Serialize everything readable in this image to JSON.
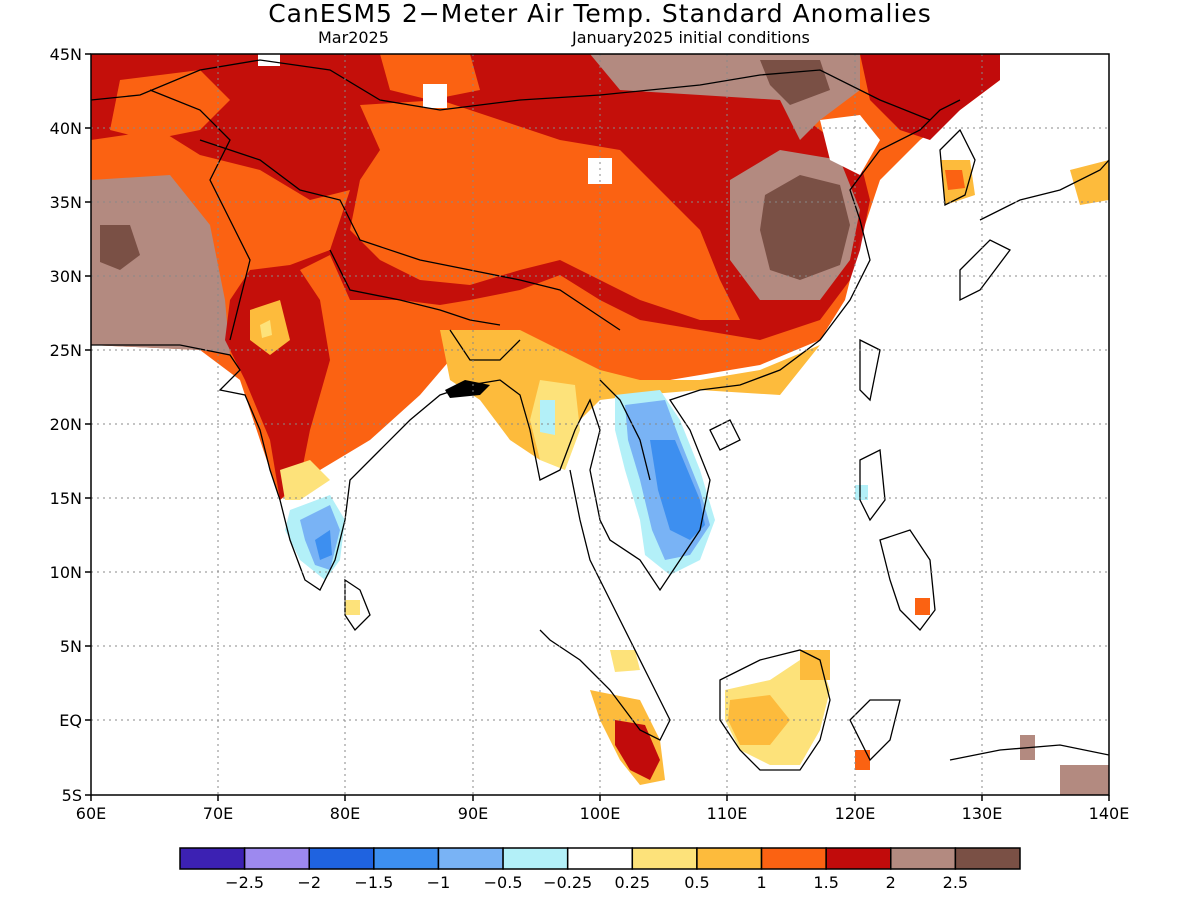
{
  "title": "CanESM5 2−Meter Air Temp. Standard Anomalies",
  "valid_month": "Mar2025",
  "initial_conditions": "January2025 initial conditions",
  "map": {
    "lon_min": 60,
    "lon_max": 140,
    "lat_min": -5,
    "lat_max": 45,
    "x_ticks": [
      "60E",
      "70E",
      "80E",
      "90E",
      "100E",
      "110E",
      "120E",
      "130E",
      "140E"
    ],
    "y_ticks": [
      "45N",
      "40N",
      "35N",
      "30N",
      "25N",
      "20N",
      "15N",
      "10N",
      "5N",
      "EQ",
      "5S"
    ]
  },
  "colorbar": {
    "colors": [
      "#3c21b3",
      "#9d89ef",
      "#1f63e0",
      "#3d8ff0",
      "#79b3f5",
      "#b3f0f8",
      "#ffffff",
      "#fde27a",
      "#fdbb3c",
      "#fb6212",
      "#c10b0b",
      "#b38a80",
      "#7a5045"
    ],
    "labels": [
      "−2.5",
      "−2",
      "−1.5",
      "−1",
      "−0.5",
      "−0.25",
      "0.25",
      "0.5",
      "1",
      "1.5",
      "2",
      "2.5"
    ]
  }
}
